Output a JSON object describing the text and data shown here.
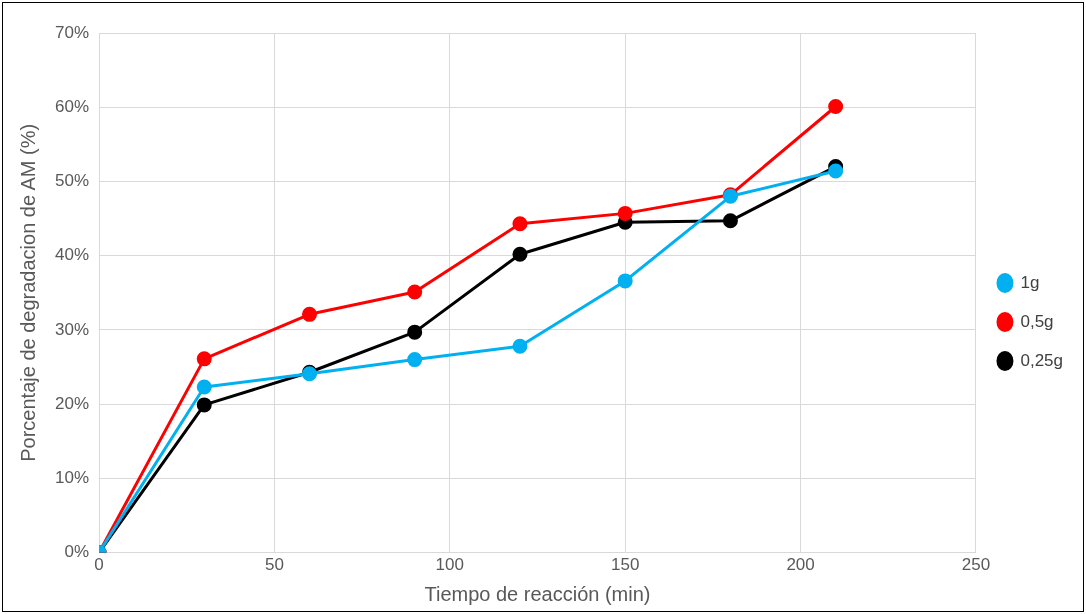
{
  "chart_data": {
    "type": "line",
    "xlabel": "Tiempo de reacción (min)",
    "ylabel": "Porcentaje de degradacion de AM (%)",
    "x": [
      0,
      30,
      60,
      90,
      120,
      150,
      180,
      210
    ],
    "series": [
      {
        "name": "1g",
        "color": "#00b0f0",
        "values": [
          0,
          22.3,
          24.1,
          26.0,
          27.8,
          36.6,
          48.0,
          51.4
        ]
      },
      {
        "name": "0,5g",
        "color": "#ff0000",
        "values": [
          0,
          26.1,
          32.1,
          35.1,
          44.3,
          45.7,
          48.2,
          60.1
        ]
      },
      {
        "name": "0,25g",
        "color": "#000000",
        "values": [
          0,
          19.9,
          24.3,
          29.7,
          40.2,
          44.5,
          44.7,
          52.0
        ]
      }
    ],
    "xlim": [
      0,
      250
    ],
    "xticks": [
      0,
      50,
      100,
      150,
      200,
      250
    ],
    "ylim": [
      0,
      70
    ],
    "yticks": [
      {
        "value": 0,
        "label": "0%"
      },
      {
        "value": 10,
        "label": "10%"
      },
      {
        "value": 20,
        "label": "20%"
      },
      {
        "value": 30,
        "label": "30%"
      },
      {
        "value": 40,
        "label": "40%"
      },
      {
        "value": 50,
        "label": "50%"
      },
      {
        "value": 60,
        "label": "60%"
      },
      {
        "value": 70,
        "label": "70%"
      }
    ],
    "grid": true,
    "legend": "right",
    "marker": "circle",
    "line_style": "solid"
  }
}
